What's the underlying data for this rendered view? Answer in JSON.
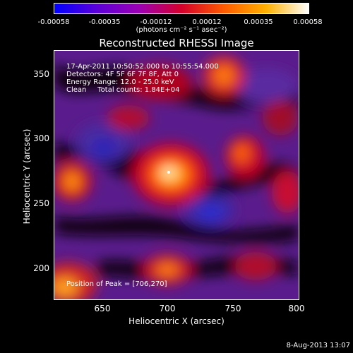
{
  "colorbar": {
    "ticks": [
      "-0.00058",
      "-0.00035",
      "-0.00012",
      "0.00012",
      "0.00035",
      "0.00058"
    ],
    "units": "(photons cm⁻² s⁻¹ asec⁻²)",
    "colors": [
      "#0000ff",
      "#5a00d8",
      "#9b00b4",
      "#d4002a",
      "#ff5a00",
      "#ffb000",
      "#ffffff"
    ]
  },
  "title": "Reconstructed RHESSI Image",
  "info": {
    "line1": "17-Apr-2011 10:50:52.000 to 10:55:54.000",
    "line2": "Detectors: 4F 5F 6F 7F 8F, Att 0",
    "line3": "Energy Range: 12.0 - 25.0 keV",
    "line4": "Clean     Total counts: 1.84E+04"
  },
  "peak_label": "Position of Peak = [706,270]",
  "axes": {
    "xlabel": "Heliocentric X (arcsec)",
    "ylabel": "Heliocentric Y (arcsec)",
    "xticks": [
      "650",
      "700",
      "750",
      "800"
    ],
    "yticks": [
      "350",
      "300",
      "250",
      "200"
    ]
  },
  "footer_date": "8-Aug-2013 13:07"
}
